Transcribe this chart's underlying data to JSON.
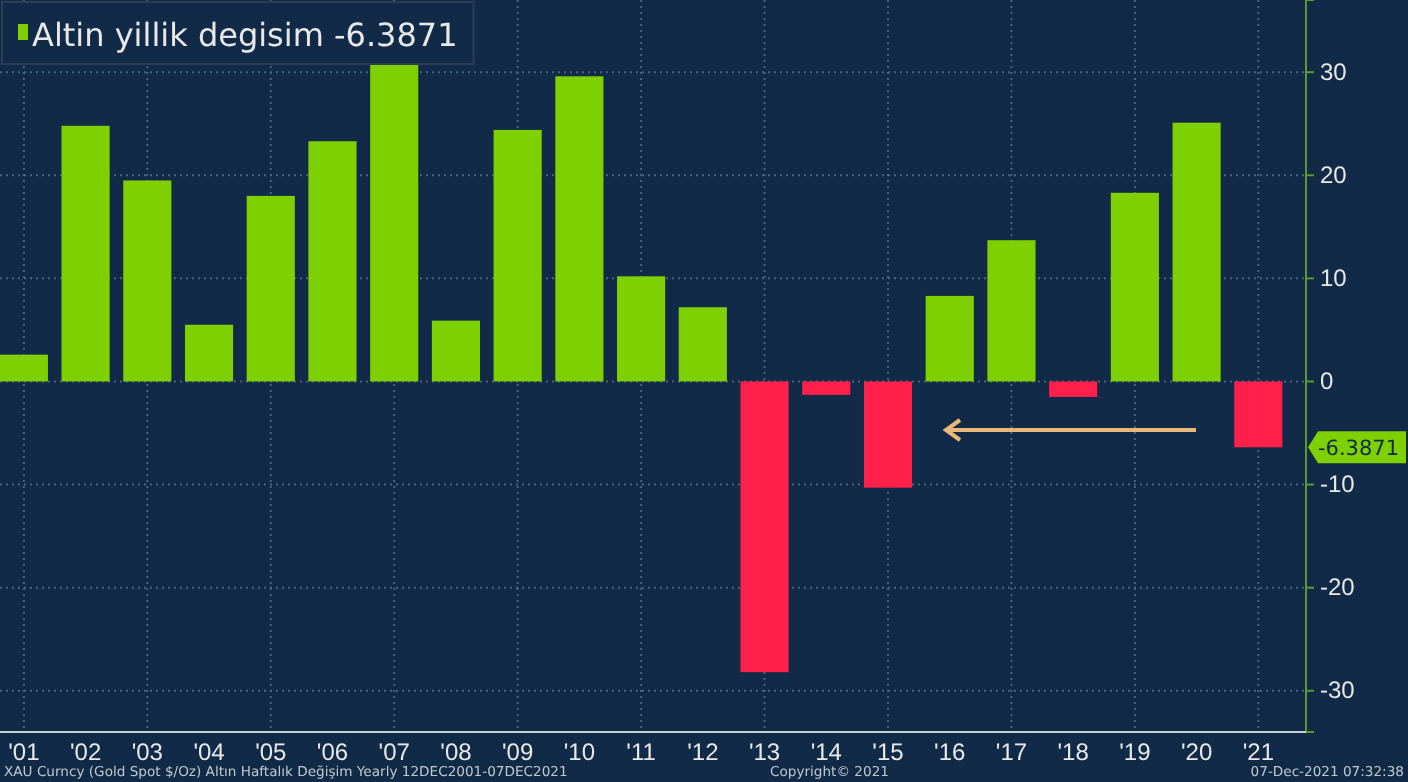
{
  "chart_data": {
    "type": "bar",
    "categories": [
      "'01",
      "'02",
      "'03",
      "'04",
      "'05",
      "'06",
      "'07",
      "'08",
      "'09",
      "'10",
      "'11",
      "'12",
      "'13",
      "'14",
      "'15",
      "'16",
      "'17",
      "'18",
      "'19",
      "'20",
      "'21"
    ],
    "series": [
      {
        "name": "Altin yillik degisim -6.3871",
        "color": "#7fd000",
        "values": [
          2.6,
          24.8,
          19.5,
          5.5,
          18.0,
          23.3,
          30.9,
          5.9,
          24.4,
          29.6,
          10.2,
          7.2,
          -28.2,
          -1.3,
          -10.3,
          8.3,
          13.7,
          -1.5,
          18.3,
          25.1,
          -6.3871
        ],
        "colors": [
          "#7fd000",
          "#7fd000",
          "#7fd000",
          "#7fd000",
          "#7fd000",
          "#7fd000",
          "#7fd000",
          "#7fd000",
          "#7fd000",
          "#7fd000",
          "#7fd000",
          "#7fd000",
          "#ff1f4b",
          "#ff1f4b",
          "#ff1f4b",
          "#7fd000",
          "#7fd000",
          "#ff1f4b",
          "#7fd000",
          "#7fd000",
          "#ff1f4b"
        ]
      }
    ],
    "ylim": [
      -34,
      37
    ],
    "yticks": [
      -30,
      -20,
      -10,
      0,
      10,
      20,
      30
    ],
    "grid": true,
    "legend": "top left",
    "annotations": [
      "-6.3871",
      "XAU Curncy (Gold Spot   $/Oz) Altın Haftalık Değişim  Yearly 12DEC2001-07DEC2021",
      "Copyright© 2021",
      "07-Dec-2021 07:32:38"
    ]
  }
}
